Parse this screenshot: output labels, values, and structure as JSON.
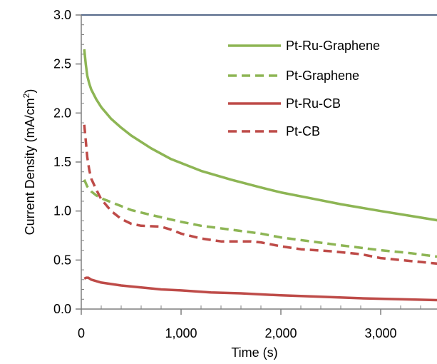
{
  "chart_data": {
    "type": "line",
    "xlabel": "Time (s)",
    "ylabel": "Current Density (mA/cm²)",
    "ylabel_parts": {
      "base": "Current Density (mA/cm",
      "sup": "2",
      "tail": ")"
    },
    "xlim": [
      0,
      3600
    ],
    "ylim": [
      0,
      3.0
    ],
    "x_ticks": [
      0,
      1000,
      2000,
      3000
    ],
    "x_tick_labels": [
      "0",
      "1,000",
      "2,000",
      "3,000"
    ],
    "y_ticks": [
      0,
      0.5,
      1.0,
      1.5,
      2.0,
      2.5,
      3.0
    ],
    "y_tick_labels": [
      "0.0",
      "0.5",
      "1.0",
      "1.5",
      "2.0",
      "2.5",
      "3.0"
    ],
    "grid": false,
    "legend_position": "top-right",
    "series": [
      {
        "name": "Pt-Ru-Graphene",
        "color": "#8DB554",
        "dash": "solid",
        "points": [
          [
            30,
            2.65
          ],
          [
            45,
            2.5
          ],
          [
            60,
            2.38
          ],
          [
            80,
            2.3
          ],
          [
            100,
            2.24
          ],
          [
            150,
            2.14
          ],
          [
            200,
            2.06
          ],
          [
            300,
            1.94
          ],
          [
            400,
            1.85
          ],
          [
            500,
            1.77
          ],
          [
            700,
            1.64
          ],
          [
            900,
            1.53
          ],
          [
            1000,
            1.49
          ],
          [
            1200,
            1.41
          ],
          [
            1500,
            1.32
          ],
          [
            1800,
            1.24
          ],
          [
            2000,
            1.19
          ],
          [
            2300,
            1.13
          ],
          [
            2600,
            1.07
          ],
          [
            3000,
            1.0
          ],
          [
            3300,
            0.95
          ],
          [
            3600,
            0.9
          ]
        ]
      },
      {
        "name": "Pt-Graphene",
        "color": "#8DB554",
        "dash": "dashed",
        "points": [
          [
            30,
            1.32
          ],
          [
            60,
            1.25
          ],
          [
            100,
            1.2
          ],
          [
            150,
            1.16
          ],
          [
            200,
            1.13
          ],
          [
            300,
            1.09
          ],
          [
            400,
            1.05
          ],
          [
            500,
            1.01
          ],
          [
            700,
            0.96
          ],
          [
            1000,
            0.89
          ],
          [
            1200,
            0.85
          ],
          [
            1500,
            0.81
          ],
          [
            1800,
            0.77
          ],
          [
            2000,
            0.73
          ],
          [
            2300,
            0.69
          ],
          [
            2600,
            0.65
          ],
          [
            3000,
            0.6
          ],
          [
            3300,
            0.57
          ],
          [
            3600,
            0.53
          ]
        ]
      },
      {
        "name": "Pt-Ru-CB",
        "color": "#BE4B48",
        "dash": "solid",
        "points": [
          [
            30,
            0.31
          ],
          [
            50,
            0.32
          ],
          [
            70,
            0.32
          ],
          [
            100,
            0.3
          ],
          [
            200,
            0.27
          ],
          [
            400,
            0.24
          ],
          [
            600,
            0.22
          ],
          [
            800,
            0.2
          ],
          [
            1000,
            0.19
          ],
          [
            1300,
            0.17
          ],
          [
            1600,
            0.16
          ],
          [
            2000,
            0.14
          ],
          [
            2400,
            0.125
          ],
          [
            2800,
            0.11
          ],
          [
            3200,
            0.1
          ],
          [
            3600,
            0.09
          ]
        ]
      },
      {
        "name": "Pt-CB",
        "color": "#BE4B48",
        "dash": "dashed",
        "points": [
          [
            30,
            1.88
          ],
          [
            45,
            1.72
          ],
          [
            60,
            1.55
          ],
          [
            80,
            1.42
          ],
          [
            100,
            1.33
          ],
          [
            150,
            1.22
          ],
          [
            200,
            1.12
          ],
          [
            250,
            1.06
          ],
          [
            300,
            1.0
          ],
          [
            400,
            0.92
          ],
          [
            500,
            0.87
          ],
          [
            600,
            0.85
          ],
          [
            800,
            0.84
          ],
          [
            900,
            0.81
          ],
          [
            1000,
            0.77
          ],
          [
            1200,
            0.72
          ],
          [
            1400,
            0.69
          ],
          [
            1600,
            0.69
          ],
          [
            1700,
            0.69
          ],
          [
            1800,
            0.68
          ],
          [
            2000,
            0.64
          ],
          [
            2200,
            0.61
          ],
          [
            2500,
            0.59
          ],
          [
            2800,
            0.56
          ],
          [
            3000,
            0.52
          ],
          [
            3300,
            0.49
          ],
          [
            3600,
            0.46
          ]
        ]
      }
    ]
  }
}
